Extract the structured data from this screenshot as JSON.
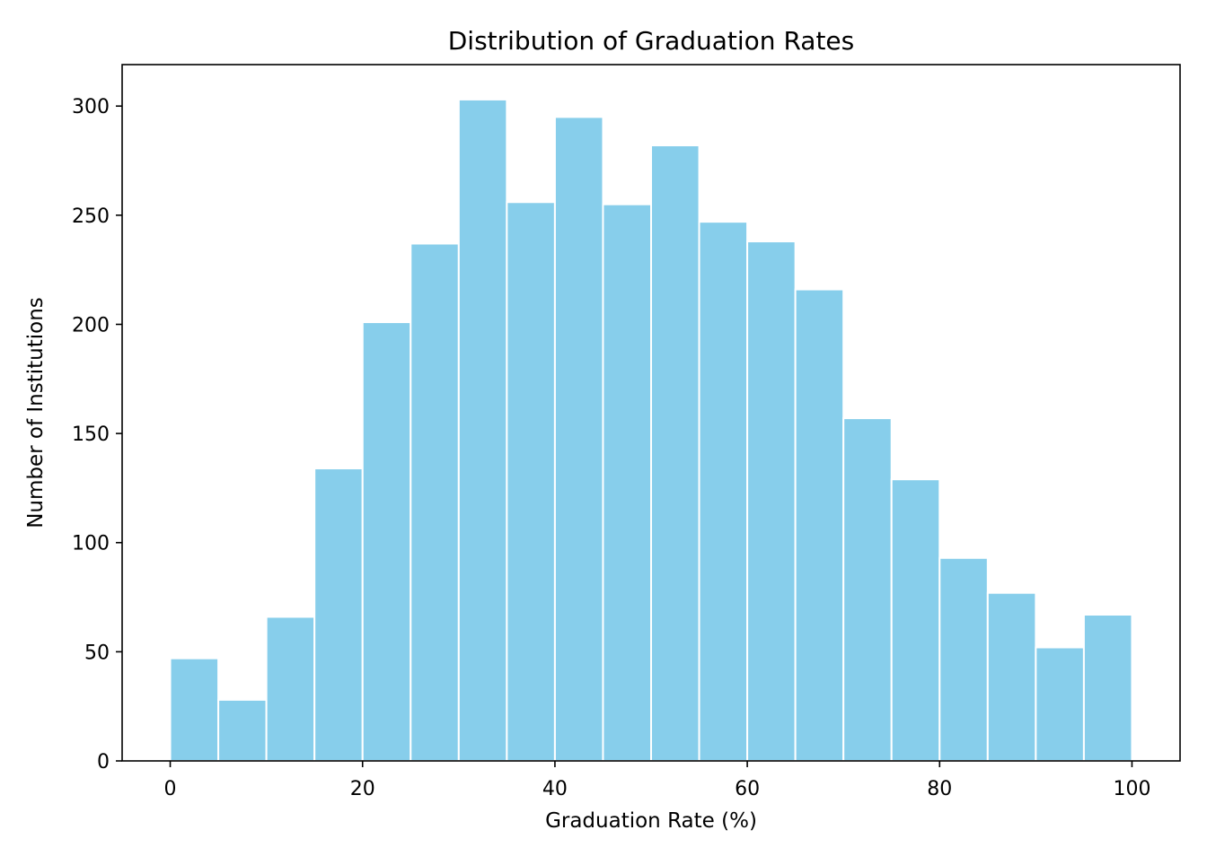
{
  "chart_data": {
    "type": "bar",
    "title": "Distribution of Graduation Rates",
    "xlabel": "Graduation Rate (%)",
    "ylabel": "Number of Institutions",
    "bin_edges": [
      0,
      5,
      10,
      15,
      20,
      25,
      30,
      35,
      40,
      45,
      50,
      55,
      60,
      65,
      70,
      75,
      80,
      85,
      90,
      95,
      100
    ],
    "values": [
      47,
      28,
      66,
      134,
      201,
      237,
      303,
      256,
      295,
      255,
      282,
      247,
      238,
      216,
      157,
      129,
      93,
      77,
      52,
      67
    ],
    "xlim": [
      -5,
      105
    ],
    "ylim": [
      0,
      319
    ],
    "xticks": [
      0,
      20,
      40,
      60,
      80,
      100
    ],
    "xtick_labels": [
      "0",
      "20",
      "40",
      "60",
      "80",
      "100"
    ],
    "yticks": [
      0,
      50,
      100,
      150,
      200,
      250,
      300
    ],
    "ytick_labels": [
      "0",
      "50",
      "100",
      "150",
      "200",
      "250",
      "300"
    ],
    "bar_color": "#87ceeb",
    "bar_edge_color": "#ffffff",
    "grid": false,
    "legend": "none"
  }
}
